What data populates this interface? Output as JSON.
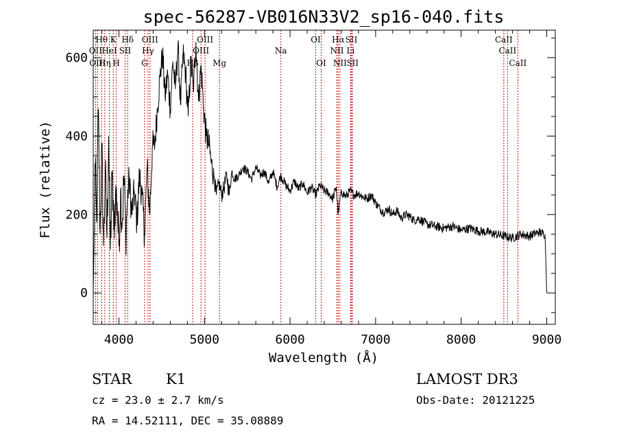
{
  "chart_data": {
    "type": "line",
    "title": "spec-56287-VB016N33V2_sp16-040.fits",
    "xlabel": "Wavelength (Å)",
    "ylabel": "Flux (relative)",
    "xlim": [
      3700,
      9100
    ],
    "ylim": [
      -80,
      670
    ],
    "xticks": [
      4000,
      5000,
      6000,
      7000,
      8000,
      9000
    ],
    "yticks": [
      0,
      200,
      400,
      600
    ],
    "grid": false,
    "series": [
      {
        "x": [
          3700,
          3710,
          3720,
          3740,
          3760,
          3780,
          3800,
          3820,
          3840,
          3860,
          3880,
          3900,
          3920,
          3940,
          3960,
          3980,
          4000,
          4020,
          4040,
          4060,
          4080,
          4100,
          4120,
          4150,
          4180,
          4210,
          4240,
          4270,
          4300,
          4330,
          4360,
          4390,
          4420,
          4450,
          4480,
          4510,
          4540,
          4570,
          4600,
          4630,
          4660,
          4690,
          4720,
          4750,
          4780,
          4810,
          4840,
          4870,
          4900,
          4930,
          4960,
          4990,
          5020,
          5050,
          5080,
          5110,
          5140,
          5170,
          5200,
          5230,
          5260,
          5290,
          5320,
          5350,
          5400,
          5450,
          5500,
          5550,
          5600,
          5650,
          5700,
          5750,
          5800,
          5850,
          5890,
          5950,
          6000,
          6050,
          6100,
          6150,
          6200,
          6250,
          6300,
          6350,
          6400,
          6450,
          6500,
          6540,
          6563,
          6590,
          6620,
          6650,
          6700,
          6750,
          6800,
          6850,
          6900,
          6950,
          7000,
          7050,
          7100,
          7150,
          7200,
          7250,
          7300,
          7350,
          7400,
          7450,
          7500,
          7600,
          7700,
          7800,
          7900,
          8000,
          8100,
          8200,
          8300,
          8400,
          8500,
          8600,
          8700,
          8800,
          8900,
          8980,
          9000
        ],
        "y": [
          0,
          120,
          330,
          180,
          470,
          150,
          380,
          120,
          310,
          140,
          400,
          110,
          290,
          160,
          250,
          230,
          120,
          260,
          180,
          300,
          150,
          240,
          290,
          200,
          260,
          180,
          300,
          250,
          150,
          320,
          200,
          370,
          380,
          470,
          550,
          610,
          500,
          560,
          470,
          590,
          520,
          630,
          480,
          610,
          560,
          450,
          590,
          520,
          640,
          490,
          580,
          470,
          400,
          380,
          330,
          300,
          250,
          280,
          250,
          270,
          300,
          250,
          310,
          290,
          300,
          320,
          310,
          290,
          320,
          300,
          310,
          280,
          310,
          270,
          300,
          275,
          260,
          285,
          265,
          280,
          255,
          270,
          250,
          275,
          260,
          255,
          240,
          270,
          200,
          250,
          255,
          245,
          260,
          250,
          255,
          245,
          240,
          250,
          230,
          215,
          205,
          215,
          200,
          210,
          190,
          200,
          195,
          185,
          190,
          175,
          170,
          165,
          170,
          160,
          165,
          158,
          155,
          150,
          145,
          140,
          150,
          145,
          155,
          150,
          0
        ]
      }
    ],
    "line_markers": [
      {
        "wl": 3727,
        "label": "OII",
        "row": 2
      },
      {
        "wl": 3750,
        "label": "OIII",
        "row": 3
      },
      {
        "wl": 3798,
        "label": "Hθ",
        "row": 1
      },
      {
        "wl": 3835,
        "label": "Hη",
        "row": 3
      },
      {
        "wl": 3889,
        "label": "HeI",
        "row": 2
      },
      {
        "wl": 3934,
        "label": "K",
        "row": 1
      },
      {
        "wl": 3969,
        "label": "H",
        "row": 3
      },
      {
        "wl": 4072,
        "label": "SII",
        "row": 2
      },
      {
        "wl": 4102,
        "label": "Hδ",
        "row": 1
      },
      {
        "wl": 4300,
        "label": "G",
        "row": 3
      },
      {
        "wl": 4340,
        "label": "Hγ",
        "row": 2
      },
      {
        "wl": 4363,
        "label": "OIII",
        "row": 1
      },
      {
        "wl": 4861,
        "label": "Hβ",
        "row": 3
      },
      {
        "wl": 4959,
        "label": "OIII",
        "row": 2
      },
      {
        "wl": 5007,
        "label": "OIII",
        "row": 1
      },
      {
        "wl": 5175,
        "label": "Mg",
        "row": 3
      },
      {
        "wl": 5893,
        "label": "Na",
        "row": 2
      },
      {
        "wl": 6300,
        "label": "OI",
        "row": 1
      },
      {
        "wl": 6364,
        "label": "OI",
        "row": 3
      },
      {
        "wl": 6548,
        "label": "NII",
        "row": 2
      },
      {
        "wl": 6563,
        "label": "Hα",
        "row": 1
      },
      {
        "wl": 6583,
        "label": "NII",
        "row": 3
      },
      {
        "wl": 6708,
        "label": "Li",
        "row": 2
      },
      {
        "wl": 6717,
        "label": "SII",
        "row": 1
      },
      {
        "wl": 6731,
        "label": "SII",
        "row": 3
      },
      {
        "wl": 8498,
        "label": "CaII",
        "row": 1
      },
      {
        "wl": 8542,
        "label": "CaII",
        "row": 2
      },
      {
        "wl": 8662,
        "label": "CaII",
        "row": 3
      }
    ]
  },
  "info": {
    "object_class": "STAR",
    "subclass": "K1",
    "survey": "LAMOST DR3",
    "redshift": "cz = 23.0 ± 2.7 km/s",
    "obs_date": "Obs-Date: 20121225",
    "coords": "RA =  14.52111, DEC =  35.08889"
  },
  "colors": {
    "axis": "#000000",
    "spectrum": "#000000",
    "line_marker": "#cc0000"
  }
}
